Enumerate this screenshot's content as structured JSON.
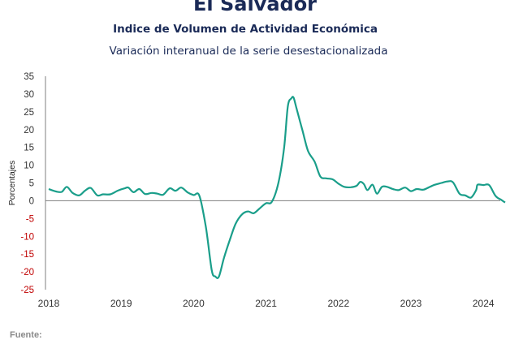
{
  "header": {
    "title": "El Salvador",
    "subtitle": "Indice de Volumen de  Actividad Económica",
    "subtitle2": "Variación interanual de la serie desestacionalizada"
  },
  "footer": {
    "source_label": "Fuente:"
  },
  "colors": {
    "line": "#1a9e8a",
    "negative_tick": "#c00000",
    "positive_tick": "#333333",
    "axis": "#7f7f7f"
  },
  "chart_data": {
    "type": "line",
    "title": "El Salvador",
    "ylabel": "Porcentajes",
    "ylim": [
      -25,
      35
    ],
    "yticks": [
      35,
      30,
      25,
      20,
      15,
      10,
      5,
      0,
      -5,
      -10,
      -15,
      -20,
      -25
    ],
    "xlim": [
      2018,
      2024.3
    ],
    "xticks": [
      "2018",
      "2019",
      "2020",
      "2021",
      "2022",
      "2023",
      "2024"
    ],
    "grid": false,
    "series": [
      {
        "points": [
          [
            2018.0,
            3.3
          ],
          [
            2018.1,
            2.6
          ],
          [
            2018.18,
            2.5
          ],
          [
            2018.25,
            3.9
          ],
          [
            2018.33,
            2.2
          ],
          [
            2018.42,
            1.5
          ],
          [
            2018.5,
            2.8
          ],
          [
            2018.58,
            3.6
          ],
          [
            2018.67,
            1.5
          ],
          [
            2018.75,
            1.8
          ],
          [
            2018.85,
            1.8
          ],
          [
            2018.95,
            2.8
          ],
          [
            2019.05,
            3.5
          ],
          [
            2019.1,
            3.7
          ],
          [
            2019.17,
            2.4
          ],
          [
            2019.25,
            3.3
          ],
          [
            2019.33,
            1.9
          ],
          [
            2019.42,
            2.2
          ],
          [
            2019.5,
            2.0
          ],
          [
            2019.58,
            1.7
          ],
          [
            2019.67,
            3.5
          ],
          [
            2019.75,
            2.8
          ],
          [
            2019.83,
            3.7
          ],
          [
            2019.92,
            2.3
          ],
          [
            2020.0,
            1.6
          ],
          [
            2020.08,
            1.4
          ],
          [
            2020.17,
            -7.5
          ],
          [
            2020.25,
            -19.5
          ],
          [
            2020.3,
            -21.3
          ],
          [
            2020.35,
            -21.3
          ],
          [
            2020.42,
            -16.0
          ],
          [
            2020.5,
            -11.0
          ],
          [
            2020.58,
            -6.5
          ],
          [
            2020.67,
            -3.8
          ],
          [
            2020.75,
            -3.0
          ],
          [
            2020.83,
            -3.5
          ],
          [
            2020.92,
            -2.0
          ],
          [
            2021.0,
            -0.7
          ],
          [
            2021.08,
            -0.3
          ],
          [
            2021.17,
            5.0
          ],
          [
            2021.25,
            15.0
          ],
          [
            2021.3,
            26.5
          ],
          [
            2021.35,
            28.8
          ],
          [
            2021.38,
            29.0
          ],
          [
            2021.42,
            26.0
          ],
          [
            2021.5,
            20.0
          ],
          [
            2021.58,
            14.0
          ],
          [
            2021.67,
            11.0
          ],
          [
            2021.75,
            6.8
          ],
          [
            2021.83,
            6.3
          ],
          [
            2021.92,
            6.0
          ],
          [
            2022.0,
            4.8
          ],
          [
            2022.08,
            3.9
          ],
          [
            2022.17,
            3.8
          ],
          [
            2022.25,
            4.2
          ],
          [
            2022.3,
            5.3
          ],
          [
            2022.35,
            4.7
          ],
          [
            2022.4,
            3.0
          ],
          [
            2022.47,
            4.5
          ],
          [
            2022.53,
            2.0
          ],
          [
            2022.6,
            3.9
          ],
          [
            2022.67,
            3.9
          ],
          [
            2022.75,
            3.3
          ],
          [
            2022.83,
            3.0
          ],
          [
            2022.92,
            3.7
          ],
          [
            2023.0,
            2.7
          ],
          [
            2023.08,
            3.3
          ],
          [
            2023.17,
            3.1
          ],
          [
            2023.25,
            3.8
          ],
          [
            2023.33,
            4.5
          ],
          [
            2023.42,
            5.0
          ],
          [
            2023.5,
            5.4
          ],
          [
            2023.58,
            5.2
          ],
          [
            2023.67,
            2.0
          ],
          [
            2023.75,
            1.5
          ],
          [
            2023.83,
            0.9
          ],
          [
            2023.9,
            3.0
          ],
          [
            2023.92,
            4.5
          ],
          [
            2024.0,
            4.4
          ],
          [
            2024.08,
            4.4
          ],
          [
            2024.17,
            1.3
          ],
          [
            2024.25,
            0.2
          ],
          [
            2024.3,
            -0.5
          ]
        ]
      }
    ]
  }
}
